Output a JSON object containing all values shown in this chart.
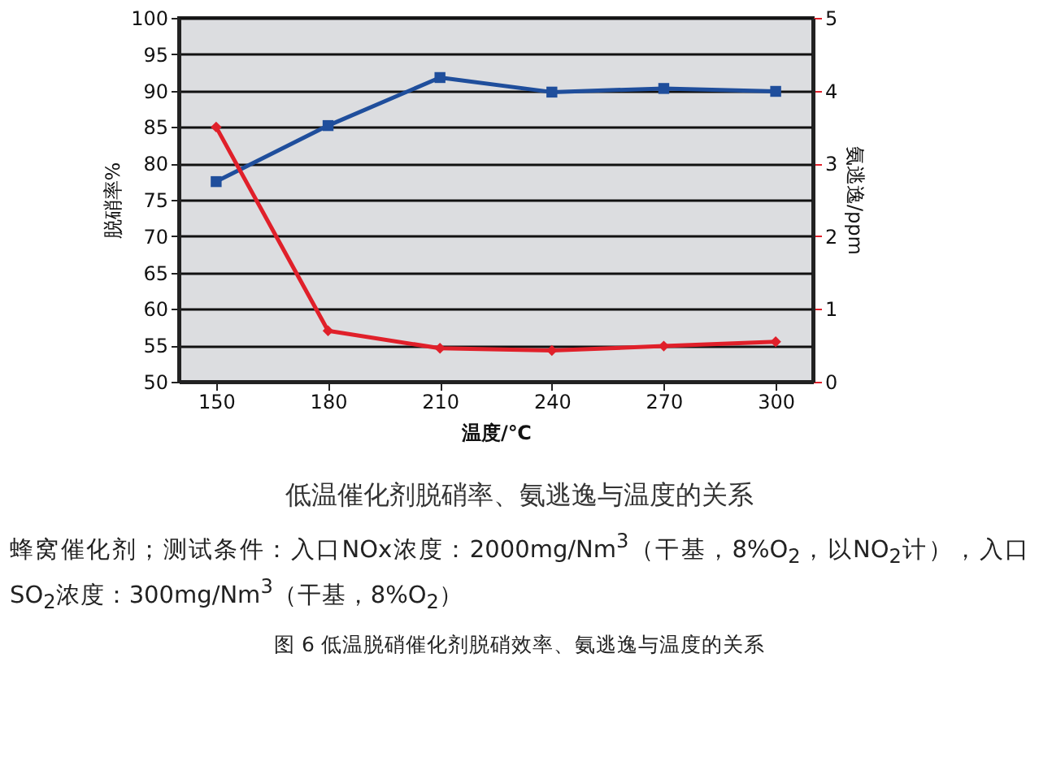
{
  "chart_data": {
    "type": "line",
    "title": "低温催化剂脱硝率、氨逃逸与温度的关系",
    "xlabel": "温度/℃",
    "ylabel": "脱硝率%",
    "y2label": "氨逃逸/ppm",
    "x": [
      150,
      180,
      210,
      240,
      270,
      300
    ],
    "series": [
      {
        "color": "#1f4e9c",
        "marker": "square",
        "values": [
          77.5,
          85.2,
          91.8,
          89.8,
          90.3,
          89.9
        ]
      },
      {
        "color": "#e0202a",
        "marker": "diamond",
        "axis": "y2",
        "values": [
          3.5,
          0.7,
          0.46,
          0.43,
          0.49,
          0.55
        ]
      }
    ],
    "xlim": [
      140,
      310
    ],
    "xticks": [
      150,
      180,
      210,
      240,
      270,
      300
    ],
    "ylim": [
      50,
      100
    ],
    "yticks": [
      50,
      55,
      60,
      65,
      70,
      75,
      80,
      85,
      90,
      95,
      100
    ],
    "y2lim": [
      0,
      5
    ],
    "y2ticks": [
      0,
      1,
      2,
      3,
      4,
      5
    ],
    "grid": "y",
    "annotations": [
      "蜂窝催化剂；测试条件：入口NOx浓度：2000mg/Nm$^{3}$（干基，8%O$_{2}$，以NO$_{2}$计），入口SO$_{2}$浓度：300mg/Nm$^{3}$（干基，8%O$_{2}$）",
      "图 6 低温脱硝催化剂脱硝效率、氨逃逸与温度的关系"
    ]
  }
}
